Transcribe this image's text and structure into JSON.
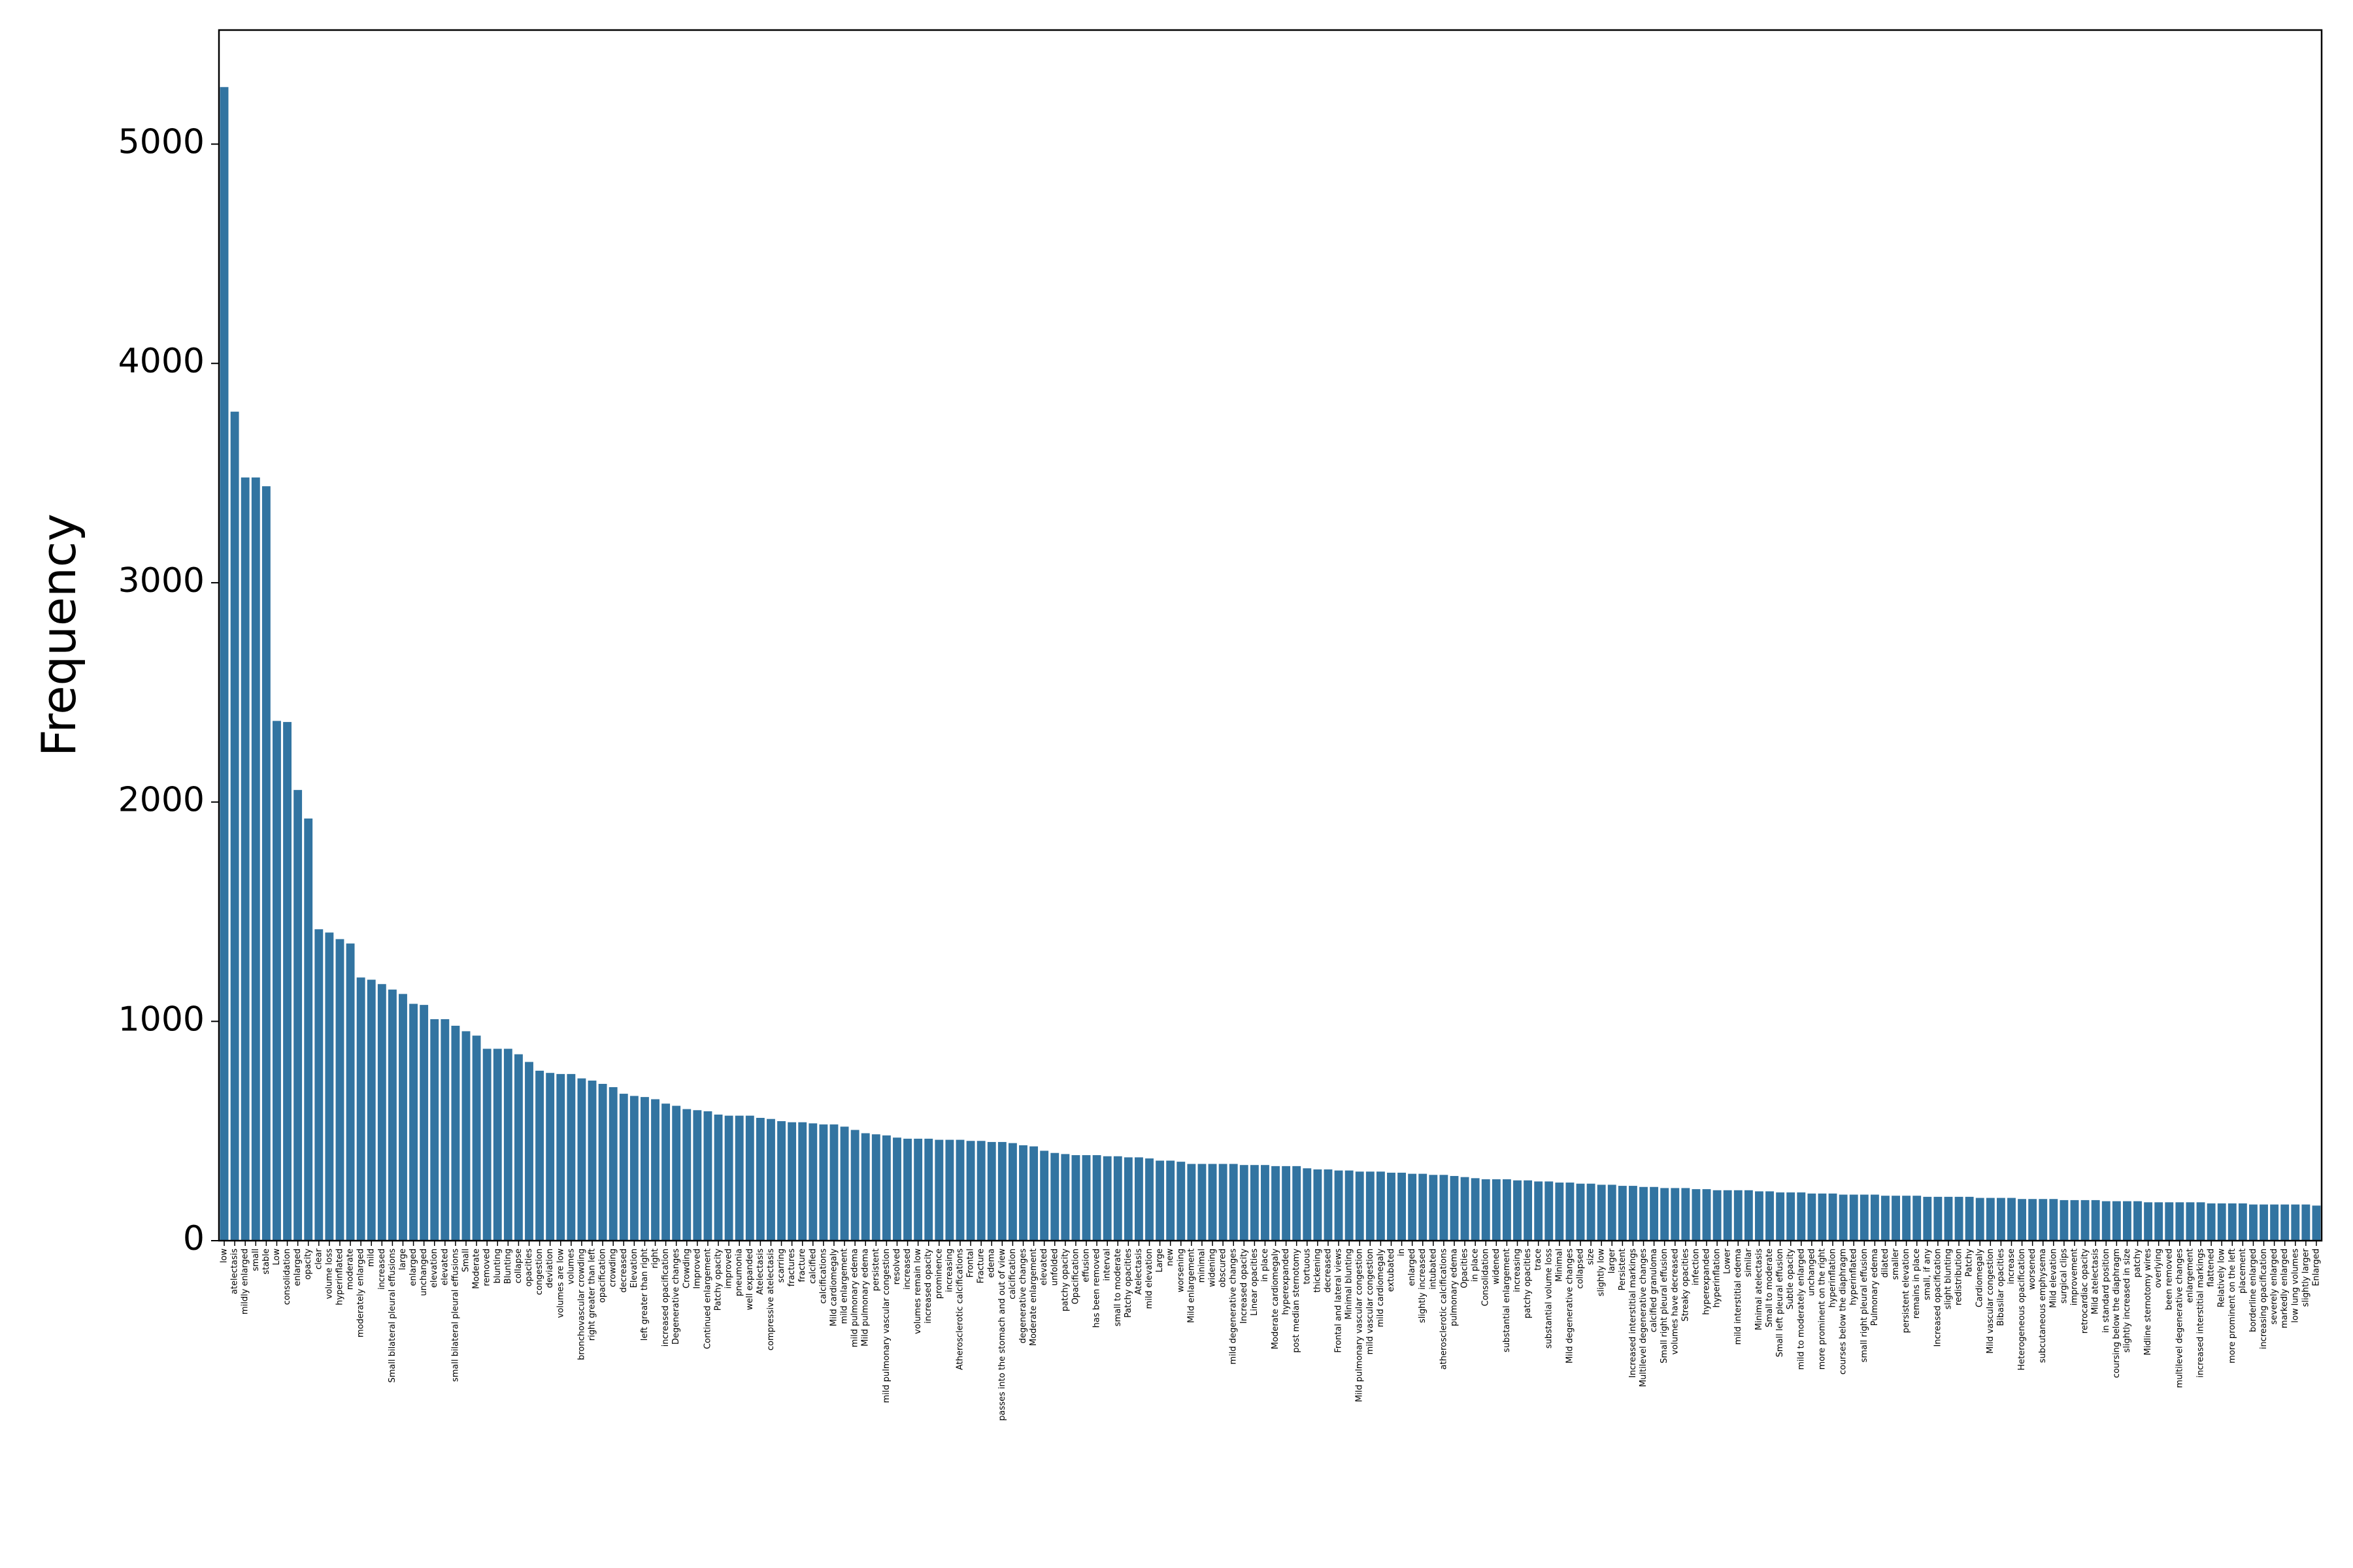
{
  "chart_data": {
    "type": "bar",
    "ylabel": "Frequency",
    "color": "#3274a1",
    "categories": [
      "low",
      "atelectasis",
      "mildly enlarged",
      "small",
      "stable",
      "Low",
      "consolidation",
      "enlarged",
      "opacity",
      "clear",
      "volume loss",
      "hyperinflated",
      "moderate",
      "moderately enlarged",
      "mild",
      "increased",
      "Small bilateral pleural effusions",
      "large",
      "enlarged",
      "unchanged",
      "elevation",
      "elevated",
      "small bilateral pleural effusions",
      "Small",
      "Moderate",
      "removed",
      "blunting",
      "Blunting",
      "collapse",
      "opacities",
      "congestion",
      "deviation",
      "volumes are low",
      "volumes",
      "bronchovascular crowding",
      "right greater than left",
      "opacification",
      "crowding",
      "decreased",
      "Elevation",
      "left greater than right",
      "right",
      "increased opacification",
      "Degenerative changes",
      "Crowding",
      "Improved",
      "Continued enlargement",
      "Patchy opacity",
      "improved",
      "pneumonia",
      "well expanded",
      "Atelectasis",
      "compressive atelectasis",
      "scarring",
      "fractures",
      "fracture",
      "calcified",
      "calcifications",
      "Mild cardiomegaly",
      "mild enlargement",
      "mild pulmonary edema",
      "Mild pulmonary edema",
      "persistent",
      "mild pulmonary vascular congestion",
      "resolved",
      "increased",
      "volumes remain low",
      "increased opacity",
      "prominence",
      "increasing",
      "Atherosclerotic calcifications",
      "Frontal",
      "Fracture",
      "edema",
      "passes into the stomach and out of view",
      "calcification",
      "degenerative changes",
      "Moderate enlargement",
      "elevated",
      "unfolded",
      "patchy opacity",
      "Opacification",
      "effusion",
      "has been removed",
      "interval",
      "small to moderate",
      "Patchy opacities",
      "Atelectasis",
      "mild elevation",
      "Large",
      "new",
      "worsening",
      "Mild enlargement",
      "minimal",
      "widening",
      "obscured",
      "mild degenerative changes",
      "Increased opacity",
      "Linear opacities",
      "in place",
      "Moderate cardiomegaly",
      "hyperexpanded",
      "post median sternotomy",
      "tortuous",
      "thickening",
      "decreased",
      "Frontal and lateral views",
      "Minimal blunting",
      "Mild pulmonary vascular congestion",
      "mild vascular congestion",
      "mild cardiomegaly",
      "extubated",
      "in",
      "enlarged",
      "slightly increased",
      "intubated",
      "atherosclerotic calcifications",
      "pulmonary edema",
      "Opacities",
      "in place",
      "Consolidation",
      "widened",
      "substantial enlargement",
      "increasing",
      "patchy opacities",
      "trace",
      "substantial volume loss",
      "Minimal",
      "Mild degenerative changes",
      "collapsed",
      "size",
      "slightly low",
      "larger",
      "Persistent",
      "Increased interstitial markings",
      "Multilevel degenerative changes",
      "calcified granuloma",
      "Small right pleural effusion",
      "volumes have decreased",
      "Streaky opacities",
      "infection",
      "hyperexpanded",
      "hyperinflation",
      "Lower",
      "mild interstitial edema",
      "similar",
      "Minimal atelectasis",
      "Small to moderate",
      "Small left pleural effusion",
      "Subtle opacity",
      "mild to moderately enlarged",
      "unchanged",
      "more prominent on the right",
      "hyperinflation",
      "courses below the diaphragm",
      "hyperinflated",
      "small right pleural effusion",
      "Pulmonary edema",
      "dilated",
      "smaller",
      "persistent elevation",
      "remains in place",
      "small, if any",
      "Increased opacification",
      "slight blunting",
      "redistribution",
      "Patchy",
      "Cardiomegaly",
      "Mild vascular congestion",
      "Bibasilar opacities",
      "increase",
      "Heterogeneous opacification",
      "worsened",
      "subcutaneous emphysema",
      "Mild elevation",
      "surgical clips",
      "improvement",
      "retrocardiac opacity",
      "Mild atelectasis",
      "in standard position",
      "coursing below the diaphragm",
      "slightly increased in size",
      "patchy",
      "Midline sternotomy wires",
      "overlying",
      "been removed",
      "multilevel degenerative changes",
      "enlargement",
      "increased interstitial markings",
      "flattened",
      "Relatively low",
      "more prominent on the left",
      "placement",
      "borderline enlarged",
      "increasing opacification",
      "severely enlarged",
      "markedly enlarged",
      "low lung volumes",
      "slightly larger",
      "Enlarged"
    ],
    "values": [
      5260,
      3780,
      3480,
      3480,
      3440,
      2370,
      2365,
      2055,
      1925,
      1420,
      1405,
      1375,
      1355,
      1200,
      1190,
      1170,
      1145,
      1125,
      1080,
      1075,
      1010,
      1010,
      980,
      955,
      935,
      875,
      875,
      875,
      850,
      815,
      775,
      765,
      760,
      760,
      740,
      730,
      715,
      700,
      670,
      660,
      655,
      645,
      625,
      615,
      600,
      595,
      590,
      575,
      570,
      570,
      570,
      560,
      555,
      545,
      540,
      540,
      535,
      530,
      530,
      520,
      505,
      490,
      485,
      480,
      470,
      465,
      465,
      465,
      460,
      460,
      460,
      455,
      455,
      450,
      450,
      445,
      435,
      430,
      410,
      400,
      395,
      390,
      390,
      390,
      385,
      385,
      380,
      380,
      375,
      365,
      365,
      360,
      350,
      350,
      350,
      350,
      350,
      345,
      345,
      345,
      340,
      340,
      340,
      330,
      325,
      325,
      320,
      320,
      315,
      315,
      315,
      310,
      310,
      305,
      305,
      300,
      300,
      295,
      290,
      285,
      280,
      280,
      280,
      275,
      275,
      270,
      270,
      265,
      265,
      260,
      260,
      255,
      255,
      250,
      250,
      245,
      245,
      240,
      240,
      240,
      235,
      235,
      230,
      230,
      230,
      230,
      225,
      225,
      220,
      220,
      220,
      215,
      215,
      215,
      210,
      210,
      210,
      210,
      205,
      205,
      205,
      205,
      200,
      200,
      200,
      200,
      200,
      195,
      195,
      195,
      195,
      190,
      190,
      190,
      190,
      185,
      185,
      185,
      185,
      180,
      180,
      180,
      180,
      175,
      175,
      175,
      175,
      175,
      175,
      170,
      170,
      170,
      170,
      165,
      165,
      165,
      165,
      165,
      165,
      160
    ],
    "ylim": [
      0,
      5520
    ],
    "yticks": [
      0,
      1000,
      2000,
      3000,
      4000,
      5000
    ]
  }
}
